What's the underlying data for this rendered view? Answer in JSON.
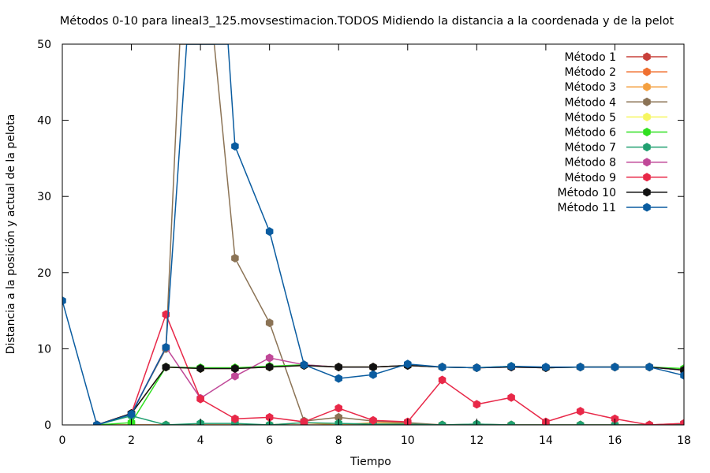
{
  "chart_data": {
    "type": "line",
    "title": "Métodos 0-10 para lineal3_125.movsestimacion.TODOS Midiendo la distancia a la coordenada y de la pelot",
    "xlabel": "Tiempo",
    "ylabel": "Distancia a la posición y actual de la pelota",
    "xlim": [
      0,
      18
    ],
    "ylim": [
      0,
      50
    ],
    "x_ticks": [
      0,
      2,
      4,
      6,
      8,
      10,
      12,
      14,
      16,
      18
    ],
    "y_ticks": [
      0,
      10,
      20,
      30,
      40,
      50
    ],
    "grid": false,
    "legend_position": "top-right",
    "series": [
      {
        "name": "Método 1",
        "color": "#c8403a",
        "points": [
          [
            1,
            0
          ],
          [
            2,
            1.5
          ],
          [
            3,
            7.6
          ],
          [
            4,
            7.4
          ],
          [
            5,
            7.4
          ],
          [
            6,
            7.6
          ],
          [
            7,
            7.8
          ],
          [
            8,
            7.6
          ],
          [
            9,
            7.6
          ],
          [
            10,
            7.8
          ],
          [
            11,
            7.6
          ],
          [
            12,
            7.5
          ],
          [
            13,
            7.6
          ],
          [
            14,
            7.5
          ],
          [
            15,
            7.6
          ],
          [
            16,
            7.6
          ],
          [
            17,
            7.6
          ],
          [
            18,
            7.2
          ]
        ]
      },
      {
        "name": "Método 2",
        "color": "#f07030",
        "points": [
          [
            1,
            0
          ],
          [
            2,
            0
          ],
          [
            3,
            0
          ],
          [
            4,
            0
          ],
          [
            5,
            0
          ],
          [
            6,
            0
          ],
          [
            7,
            0
          ],
          [
            8,
            0
          ],
          [
            9,
            0
          ],
          [
            10,
            0
          ],
          [
            11,
            0
          ],
          [
            12,
            0
          ],
          [
            13,
            0
          ],
          [
            14,
            0
          ],
          [
            15,
            0
          ],
          [
            16,
            0
          ],
          [
            17,
            0
          ],
          [
            18,
            0
          ]
        ]
      },
      {
        "name": "Método 3",
        "color": "#f4a040",
        "points": [
          [
            1,
            0
          ],
          [
            2,
            0
          ],
          [
            3,
            0
          ],
          [
            4,
            0
          ],
          [
            5,
            0
          ],
          [
            6,
            0
          ],
          [
            7,
            0.3
          ],
          [
            8,
            0
          ],
          [
            9,
            0.3
          ],
          [
            10,
            0.2
          ],
          [
            11,
            0
          ],
          [
            12,
            0
          ],
          [
            13,
            0
          ],
          [
            14,
            0
          ],
          [
            15,
            0
          ],
          [
            16,
            0
          ],
          [
            17,
            0
          ],
          [
            18,
            0
          ]
        ]
      },
      {
        "name": "Método 4",
        "color": "#8b7355",
        "points": [
          [
            1,
            0
          ],
          [
            2,
            1.5
          ],
          [
            3,
            10
          ],
          [
            3.4,
            50
          ],
          [
            4.4,
            50
          ],
          [
            5,
            21.9
          ],
          [
            6,
            13.4
          ],
          [
            7,
            0.5
          ],
          [
            8,
            1.0
          ],
          [
            9,
            0.5
          ],
          [
            10,
            0.3
          ],
          [
            11,
            0
          ],
          [
            12,
            0.1
          ],
          [
            13,
            0
          ],
          [
            14,
            0
          ],
          [
            15,
            0
          ],
          [
            16,
            0
          ],
          [
            17,
            0
          ],
          [
            18,
            0.2
          ]
        ]
      },
      {
        "name": "Método 5",
        "color": "#f6f660",
        "points": [
          [
            1,
            0
          ],
          [
            2,
            1.5
          ],
          [
            3,
            7.6
          ],
          [
            4,
            7.4
          ],
          [
            5,
            7.5
          ],
          [
            6,
            7.6
          ],
          [
            7,
            7.8
          ],
          [
            8,
            7.6
          ],
          [
            9,
            7.6
          ],
          [
            10,
            7.8
          ],
          [
            11,
            7.6
          ],
          [
            12,
            7.5
          ],
          [
            13,
            7.6
          ],
          [
            14,
            7.5
          ],
          [
            15,
            7.6
          ],
          [
            16,
            7.6
          ],
          [
            17,
            7.6
          ],
          [
            18,
            7.3
          ]
        ]
      },
      {
        "name": "Método 6",
        "color": "#30e020",
        "points": [
          [
            1,
            0
          ],
          [
            2,
            0.3
          ],
          [
            3,
            7.6
          ],
          [
            4,
            7.5
          ],
          [
            5,
            7.5
          ],
          [
            6,
            7.7
          ],
          [
            7,
            7.9
          ],
          [
            8,
            7.6
          ],
          [
            9,
            7.6
          ],
          [
            10,
            7.8
          ],
          [
            11,
            7.6
          ],
          [
            12,
            7.5
          ],
          [
            13,
            7.7
          ],
          [
            14,
            7.5
          ],
          [
            15,
            7.6
          ],
          [
            16,
            7.6
          ],
          [
            17,
            7.6
          ],
          [
            18,
            7.4
          ]
        ]
      },
      {
        "name": "Método 7",
        "color": "#20a070",
        "points": [
          [
            1,
            0
          ],
          [
            2,
            1.2
          ],
          [
            3,
            0
          ],
          [
            4,
            0.2
          ],
          [
            5,
            0.2
          ],
          [
            6,
            0
          ],
          [
            7,
            0.3
          ],
          [
            8,
            0.2
          ],
          [
            9,
            0.1
          ],
          [
            10,
            0.1
          ],
          [
            11,
            0
          ],
          [
            12,
            0.1
          ],
          [
            13,
            0
          ],
          [
            14,
            0
          ],
          [
            15,
            0
          ],
          [
            16,
            0
          ],
          [
            17,
            0
          ],
          [
            18,
            0.1
          ]
        ]
      },
      {
        "name": "Método 8",
        "color": "#c04898",
        "points": [
          [
            1,
            0
          ],
          [
            2,
            1.5
          ],
          [
            3,
            10.2
          ],
          [
            4,
            3.5
          ],
          [
            5,
            6.4
          ],
          [
            6,
            8.8
          ],
          [
            7,
            7.9
          ],
          [
            8,
            7.6
          ],
          [
            9,
            7.6
          ],
          [
            10,
            7.8
          ],
          [
            11,
            7.6
          ],
          [
            12,
            7.5
          ],
          [
            13,
            7.6
          ],
          [
            14,
            7.5
          ],
          [
            15,
            7.6
          ],
          [
            16,
            7.6
          ],
          [
            17,
            7.6
          ],
          [
            18,
            7.2
          ]
        ]
      },
      {
        "name": "Método 9",
        "color": "#e82848",
        "points": [
          [
            1,
            0
          ],
          [
            2,
            1.5
          ],
          [
            3,
            14.5
          ],
          [
            4,
            3.4
          ],
          [
            5,
            0.8
          ],
          [
            6,
            1.0
          ],
          [
            7,
            0.4
          ],
          [
            8,
            2.2
          ],
          [
            9,
            0.6
          ],
          [
            10,
            0.4
          ],
          [
            11,
            5.9
          ],
          [
            12,
            2.7
          ],
          [
            13,
            3.6
          ],
          [
            14,
            0.4
          ],
          [
            15,
            1.8
          ],
          [
            16,
            0.8
          ],
          [
            17,
            0
          ],
          [
            18,
            0.2
          ]
        ]
      },
      {
        "name": "Método 10",
        "color": "#111111",
        "points": [
          [
            1,
            0
          ],
          [
            2,
            1.5
          ],
          [
            3,
            7.6
          ],
          [
            4,
            7.4
          ],
          [
            5,
            7.4
          ],
          [
            6,
            7.6
          ],
          [
            7,
            7.8
          ],
          [
            8,
            7.6
          ],
          [
            9,
            7.6
          ],
          [
            10,
            7.8
          ],
          [
            11,
            7.6
          ],
          [
            12,
            7.5
          ],
          [
            13,
            7.6
          ],
          [
            14,
            7.5
          ],
          [
            15,
            7.6
          ],
          [
            16,
            7.6
          ],
          [
            17,
            7.6
          ],
          [
            18,
            7.2
          ]
        ]
      },
      {
        "name": "Método 11",
        "color": "#0a5ca0",
        "points": [
          [
            0,
            16.3
          ],
          [
            1,
            0
          ],
          [
            2,
            1.4
          ],
          [
            3,
            10.2
          ],
          [
            3.6,
            50
          ],
          [
            4.8,
            50
          ],
          [
            5,
            36.6
          ],
          [
            6,
            25.4
          ],
          [
            7,
            7.9
          ],
          [
            8,
            6.1
          ],
          [
            9,
            6.6
          ],
          [
            10,
            8.0
          ],
          [
            11,
            7.6
          ],
          [
            12,
            7.5
          ],
          [
            13,
            7.7
          ],
          [
            14,
            7.6
          ],
          [
            15,
            7.6
          ],
          [
            16,
            7.6
          ],
          [
            17,
            7.6
          ],
          [
            18,
            6.5
          ]
        ]
      }
    ]
  }
}
